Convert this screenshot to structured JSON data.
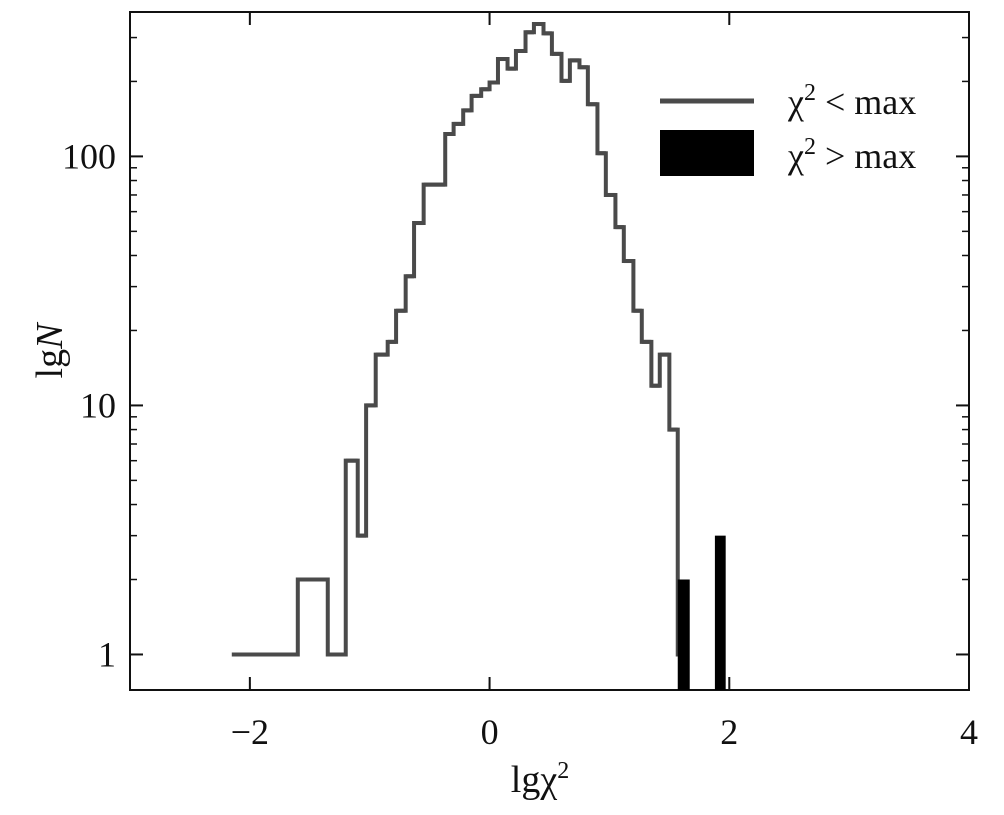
{
  "chart_data": {
    "type": "histogram",
    "x_scale": "linear",
    "y_scale": "log",
    "xlabel": {
      "base": "lgχ",
      "superscript": "2"
    },
    "ylabel": {
      "base": "lg",
      "italic": "N"
    },
    "xlim": [
      -3,
      4
    ],
    "ylim": [
      0.72,
      380
    ],
    "x_ticks": [
      {
        "value": -2,
        "label": "−2"
      },
      {
        "value": 0,
        "label": "0"
      },
      {
        "value": 2,
        "label": "2"
      },
      {
        "value": 4,
        "label": "4"
      }
    ],
    "y_ticks": [
      {
        "value": 1,
        "label": "1"
      },
      {
        "value": 10,
        "label": "10"
      },
      {
        "value": 100,
        "label": "100"
      }
    ],
    "legend_position": "top-right",
    "series": [
      {
        "name": {
          "base": "χ",
          "superscript": "2",
          "rest": " < max"
        },
        "style": "step",
        "color": "#4a4a4a",
        "bins": [
          {
            "x0": -2.15,
            "x1": -1.95,
            "y": 1
          },
          {
            "x0": -1.95,
            "x1": -1.6,
            "y": 1
          },
          {
            "x0": -1.6,
            "x1": -1.35,
            "y": 2
          },
          {
            "x0": -1.35,
            "x1": -1.2,
            "y": 1
          },
          {
            "x0": -1.2,
            "x1": -1.1,
            "y": 6
          },
          {
            "x0": -1.1,
            "x1": -1.03,
            "y": 3
          },
          {
            "x0": -1.03,
            "x1": -0.95,
            "y": 10
          },
          {
            "x0": -0.95,
            "x1": -0.85,
            "y": 16
          },
          {
            "x0": -0.85,
            "x1": -0.78,
            "y": 18
          },
          {
            "x0": -0.78,
            "x1": -0.7,
            "y": 24
          },
          {
            "x0": -0.7,
            "x1": -0.63,
            "y": 33
          },
          {
            "x0": -0.63,
            "x1": -0.55,
            "y": 54
          },
          {
            "x0": -0.55,
            "x1": -0.37,
            "y": 77
          },
          {
            "x0": -0.37,
            "x1": -0.3,
            "y": 123
          },
          {
            "x0": -0.3,
            "x1": -0.22,
            "y": 135
          },
          {
            "x0": -0.22,
            "x1": -0.15,
            "y": 153
          },
          {
            "x0": -0.15,
            "x1": -0.07,
            "y": 175
          },
          {
            "x0": -0.07,
            "x1": 0.0,
            "y": 186
          },
          {
            "x0": 0.0,
            "x1": 0.07,
            "y": 198
          },
          {
            "x0": 0.07,
            "x1": 0.15,
            "y": 246
          },
          {
            "x0": 0.15,
            "x1": 0.22,
            "y": 225
          },
          {
            "x0": 0.22,
            "x1": 0.3,
            "y": 265
          },
          {
            "x0": 0.3,
            "x1": 0.37,
            "y": 315
          },
          {
            "x0": 0.37,
            "x1": 0.45,
            "y": 340
          },
          {
            "x0": 0.45,
            "x1": 0.52,
            "y": 312
          },
          {
            "x0": 0.52,
            "x1": 0.6,
            "y": 258
          },
          {
            "x0": 0.6,
            "x1": 0.67,
            "y": 201
          },
          {
            "x0": 0.67,
            "x1": 0.75,
            "y": 243
          },
          {
            "x0": 0.75,
            "x1": 0.82,
            "y": 228
          },
          {
            "x0": 0.82,
            "x1": 0.9,
            "y": 162
          },
          {
            "x0": 0.9,
            "x1": 0.97,
            "y": 103
          },
          {
            "x0": 0.97,
            "x1": 1.05,
            "y": 70
          },
          {
            "x0": 1.05,
            "x1": 1.12,
            "y": 52
          },
          {
            "x0": 1.12,
            "x1": 1.2,
            "y": 38
          },
          {
            "x0": 1.2,
            "x1": 1.27,
            "y": 24
          },
          {
            "x0": 1.27,
            "x1": 1.35,
            "y": 18
          },
          {
            "x0": 1.35,
            "x1": 1.42,
            "y": 12
          },
          {
            "x0": 1.42,
            "x1": 1.5,
            "y": 16
          },
          {
            "x0": 1.5,
            "x1": 1.57,
            "y": 8
          },
          {
            "x0": 1.57,
            "x1": 1.65,
            "y": 1
          }
        ]
      },
      {
        "name": {
          "base": "χ",
          "superscript": "2",
          "rest": " > max"
        },
        "style": "bar",
        "color": "#000000",
        "bins": [
          {
            "x0": 1.57,
            "x1": 1.67,
            "y": 2
          },
          {
            "x0": 1.88,
            "x1": 1.97,
            "y": 3
          }
        ]
      }
    ]
  }
}
